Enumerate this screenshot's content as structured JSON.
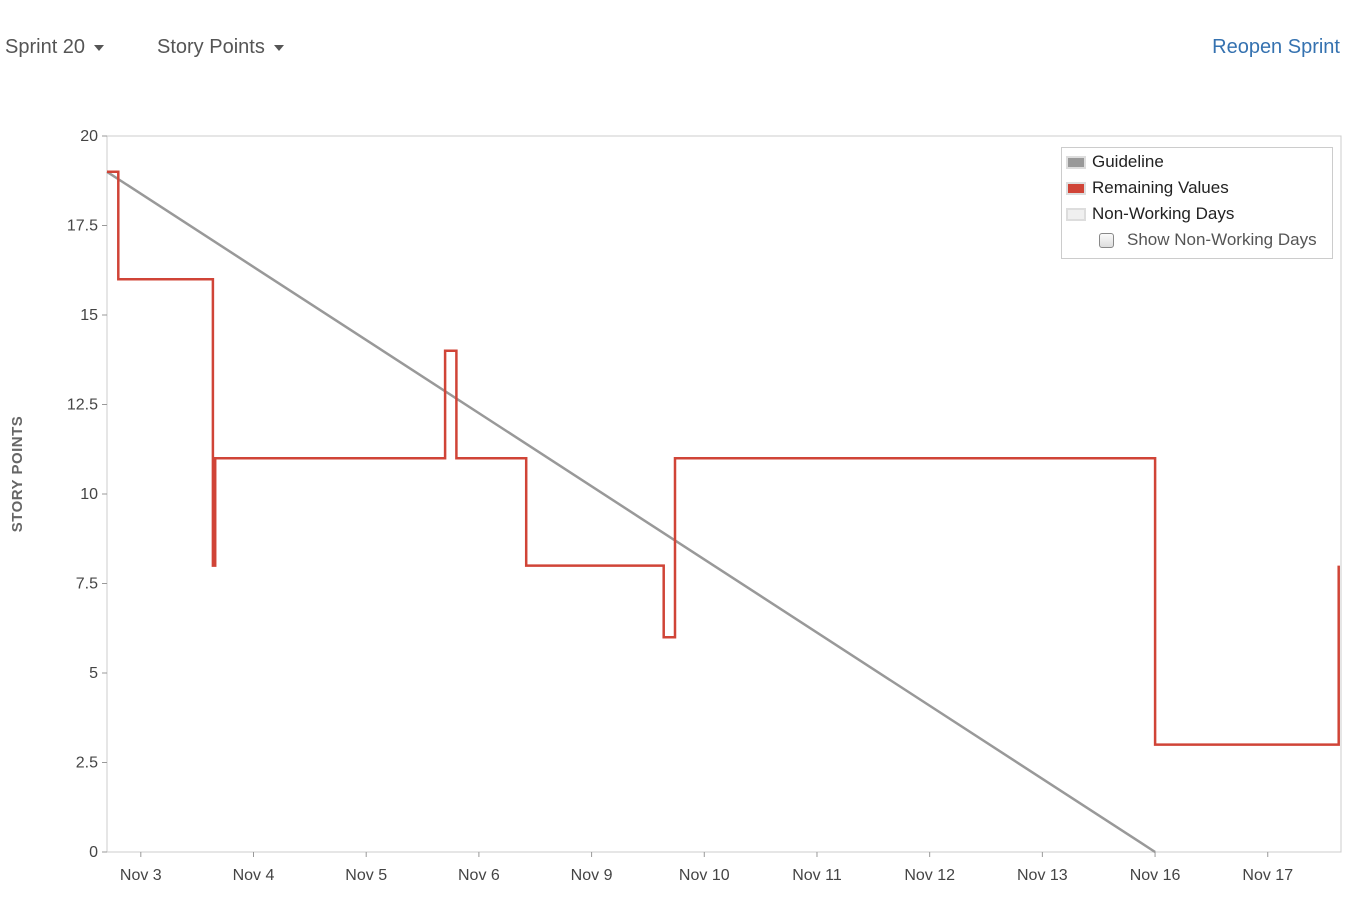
{
  "toolbar": {
    "sprint_label": "Sprint 20",
    "metric_label": "Story Points",
    "reopen_label": "Reopen Sprint"
  },
  "legend": {
    "guideline": "Guideline",
    "remaining": "Remaining Values",
    "nonworking": "Non-Working Days",
    "show_nonworking": "Show Non-Working Days",
    "show_nonworking_checked": false
  },
  "colors": {
    "guideline": "#999999",
    "remaining": "#d04437",
    "nonworking": "#f0f0f0",
    "link": "#3572b0"
  },
  "chart_data": {
    "type": "line",
    "title": "",
    "xlabel": "",
    "ylabel": "STORY POINTS",
    "ylim": [
      0,
      20
    ],
    "yticks": [
      0,
      2.5,
      5,
      7.5,
      10,
      12.5,
      15,
      17.5,
      20
    ],
    "ytick_labels": [
      "0",
      "2.5",
      "5",
      "7.5",
      "10",
      "12.5",
      "15",
      "17.5",
      "20"
    ],
    "xlim": [
      -0.3,
      10.65
    ],
    "xticks": [
      {
        "pos": 0,
        "label": "Nov 3"
      },
      {
        "pos": 1,
        "label": "Nov 4"
      },
      {
        "pos": 2,
        "label": "Nov 5"
      },
      {
        "pos": 3,
        "label": "Nov 6"
      },
      {
        "pos": 4,
        "label": "Nov 9"
      },
      {
        "pos": 5,
        "label": "Nov 10"
      },
      {
        "pos": 6,
        "label": "Nov 11"
      },
      {
        "pos": 7,
        "label": "Nov 12"
      },
      {
        "pos": 8,
        "label": "Nov 13"
      },
      {
        "pos": 9,
        "label": "Nov 16"
      },
      {
        "pos": 10,
        "label": "Nov 17"
      }
    ],
    "grid": false,
    "legend_position": "top-right",
    "series": [
      {
        "name": "Guideline",
        "style": "line",
        "points": [
          [
            -0.3,
            19
          ],
          [
            9,
            0
          ]
        ]
      },
      {
        "name": "Remaining Values",
        "style": "step",
        "points": [
          [
            -0.3,
            19
          ],
          [
            -0.2,
            19
          ],
          [
            -0.2,
            16
          ],
          [
            0.64,
            16
          ],
          [
            0.64,
            8
          ],
          [
            0.66,
            8
          ],
          [
            0.66,
            11
          ],
          [
            2.7,
            11
          ],
          [
            2.7,
            14
          ],
          [
            2.8,
            14
          ],
          [
            2.8,
            11
          ],
          [
            3.42,
            11
          ],
          [
            3.42,
            8
          ],
          [
            4.64,
            8
          ],
          [
            4.64,
            6
          ],
          [
            4.74,
            6
          ],
          [
            4.74,
            11
          ],
          [
            9,
            11
          ],
          [
            9,
            3
          ],
          [
            10.63,
            3
          ],
          [
            10.63,
            8
          ]
        ]
      }
    ]
  }
}
